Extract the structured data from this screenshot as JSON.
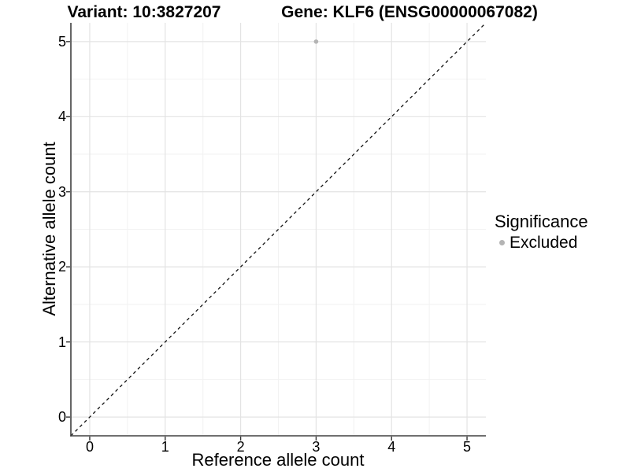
{
  "chart_data": {
    "type": "scatter",
    "title_left": "Variant: 10:3827207",
    "title_right": "Gene: KLF6 (ENSG00000067082)",
    "xlabel": "Reference allele count",
    "ylabel": "Alternative allele count",
    "xlim": [
      -0.25,
      5.25
    ],
    "ylim": [
      -0.25,
      5.25
    ],
    "x_ticks": [
      0,
      1,
      2,
      3,
      4,
      5
    ],
    "y_ticks": [
      0,
      1,
      2,
      3,
      4,
      5
    ],
    "minor_grid_step": 0.5,
    "grid": "major+minor",
    "identity_line": {
      "type": "abline",
      "slope": 1,
      "intercept": 0,
      "style": "dashed",
      "color": "#111111"
    },
    "series": [
      {
        "name": "Excluded",
        "color": "#b4b4b4",
        "points": [
          {
            "x": 3,
            "y": 5
          }
        ]
      }
    ],
    "legend": {
      "title": "Significance",
      "position": "right",
      "items": [
        {
          "label": "Excluded",
          "color": "#b4b4b4"
        }
      ]
    }
  },
  "styles": {
    "grid_major": "#e3e3e3",
    "grid_minor": "#f2f2f2",
    "axis_line": "#404040",
    "tick_mark": "#333333",
    "background": "#ffffff"
  }
}
